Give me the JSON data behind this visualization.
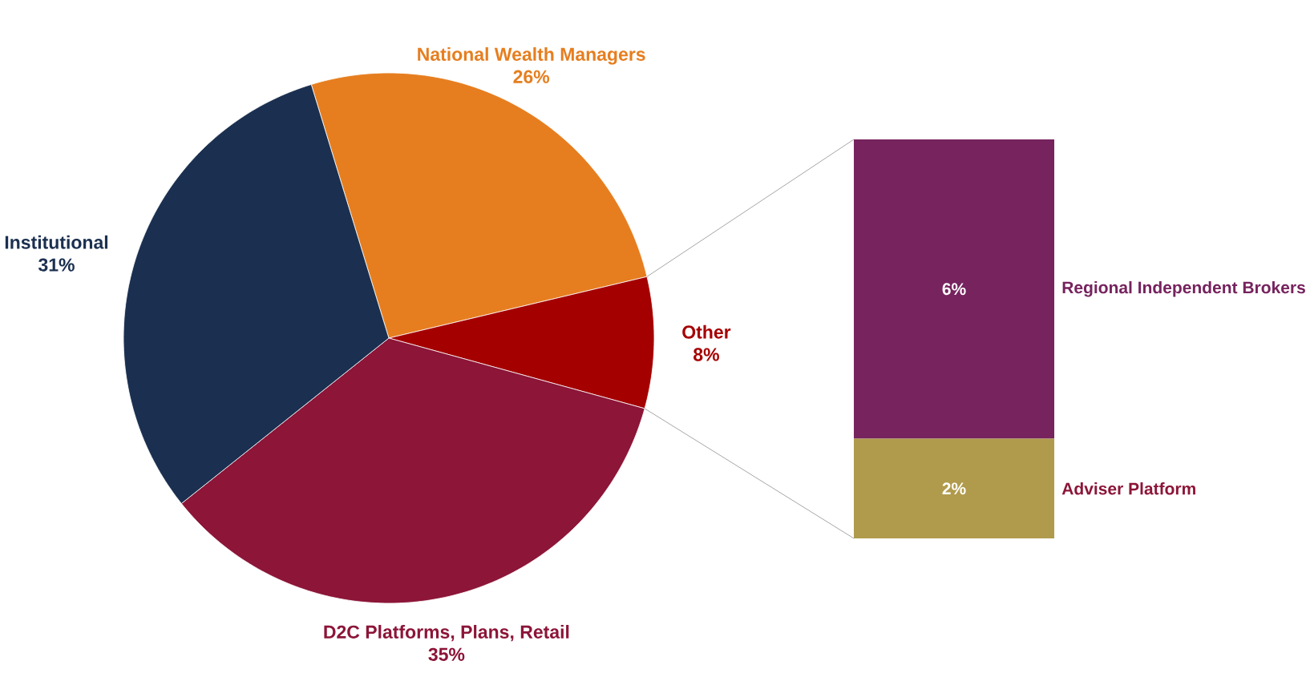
{
  "chart_data": [
    {
      "type": "pie",
      "categories": [
        "National Wealth Managers",
        "Other",
        "D2C Platforms, Plans, Retail",
        "Institutional"
      ],
      "values": [
        26,
        8,
        35,
        31
      ],
      "colors": [
        "#e67e1f",
        "#a50000",
        "#8c1538",
        "#1b3050"
      ],
      "value_labels": [
        "26%",
        "8%",
        "35%",
        "31%"
      ]
    },
    {
      "type": "bar",
      "stacked": true,
      "categories": [
        null
      ],
      "series": [
        {
          "name": "Adviser Platform",
          "color": "#b09b4c",
          "values": [
            2
          ],
          "value_labels": [
            "2%"
          ]
        },
        {
          "name": "Regional Independent Brokers",
          "color": "#76235e",
          "values": [
            6
          ],
          "value_labels": [
            "6%"
          ]
        }
      ]
    }
  ]
}
